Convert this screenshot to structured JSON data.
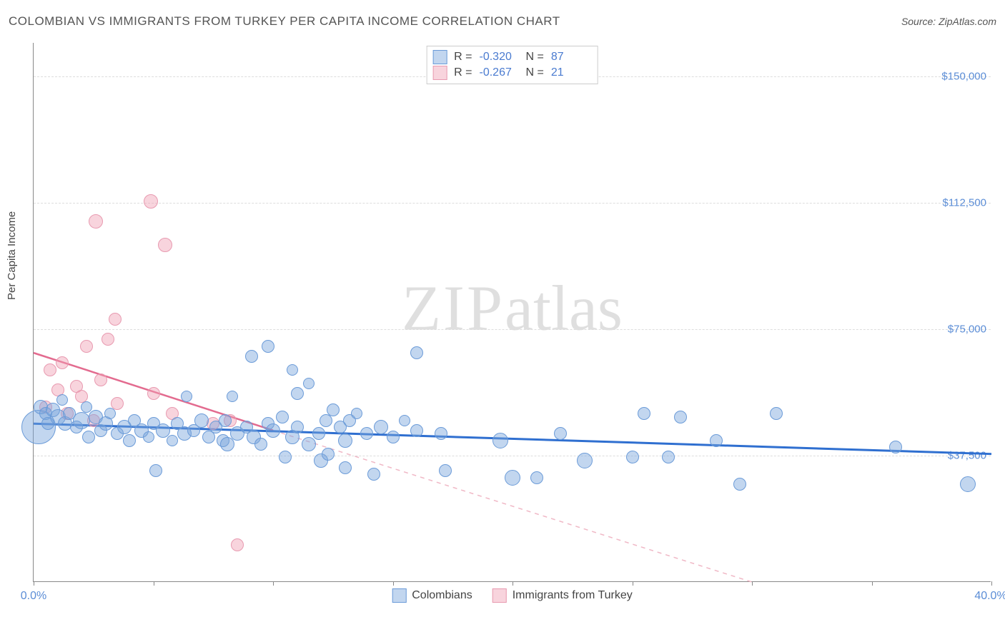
{
  "title": "COLOMBIAN VS IMMIGRANTS FROM TURKEY PER CAPITA INCOME CORRELATION CHART",
  "source_label": "Source: ",
  "source_name": "ZipAtlas.com",
  "ylabel": "Per Capita Income",
  "watermark_a": "ZIP",
  "watermark_b": "atlas",
  "chart": {
    "type": "scatter",
    "xlim": [
      0,
      40
    ],
    "ylim": [
      0,
      160000
    ],
    "x_tick_positions": [
      0,
      5,
      10,
      15,
      20,
      25,
      30,
      35,
      40
    ],
    "x_start_label": "0.0%",
    "x_end_label": "40.0%",
    "y_ticks": [
      {
        "v": 37500,
        "label": "$37,500"
      },
      {
        "v": 75000,
        "label": "$75,000"
      },
      {
        "v": 112500,
        "label": "$112,500"
      },
      {
        "v": 150000,
        "label": "$150,000"
      }
    ],
    "grid_color": "#dddddd",
    "axis_color": "#888888",
    "tick_label_color": "#5b8dd6",
    "series": {
      "colombians": {
        "label": "Colombians",
        "fill": "rgba(120,165,220,0.45)",
        "stroke": "#6b9bd8",
        "trend_color": "#2f6fd0",
        "trend_width": 3,
        "R": "-0.320",
        "N": "87",
        "trend": {
          "x1": 0,
          "y1": 47000,
          "x2": 40,
          "y2": 38000
        },
        "points": [
          {
            "x": 0.2,
            "y": 46000,
            "r": 24
          },
          {
            "x": 0.3,
            "y": 52000,
            "r": 10
          },
          {
            "x": 0.5,
            "y": 50000,
            "r": 9
          },
          {
            "x": 0.6,
            "y": 47000,
            "r": 9
          },
          {
            "x": 0.8,
            "y": 51000,
            "r": 10
          },
          {
            "x": 1.0,
            "y": 49000,
            "r": 11
          },
          {
            "x": 1.2,
            "y": 54000,
            "r": 8
          },
          {
            "x": 1.3,
            "y": 47000,
            "r": 10
          },
          {
            "x": 1.5,
            "y": 50000,
            "r": 9
          },
          {
            "x": 1.8,
            "y": 46000,
            "r": 9
          },
          {
            "x": 2.0,
            "y": 48000,
            "r": 12
          },
          {
            "x": 2.2,
            "y": 52000,
            "r": 8
          },
          {
            "x": 2.3,
            "y": 43000,
            "r": 9
          },
          {
            "x": 2.6,
            "y": 49000,
            "r": 10
          },
          {
            "x": 2.8,
            "y": 45000,
            "r": 9
          },
          {
            "x": 3.0,
            "y": 47000,
            "r": 10
          },
          {
            "x": 3.2,
            "y": 50000,
            "r": 8
          },
          {
            "x": 3.5,
            "y": 44000,
            "r": 9
          },
          {
            "x": 3.8,
            "y": 46000,
            "r": 10
          },
          {
            "x": 4.0,
            "y": 42000,
            "r": 9
          },
          {
            "x": 4.2,
            "y": 48000,
            "r": 9
          },
          {
            "x": 4.5,
            "y": 45000,
            "r": 10
          },
          {
            "x": 4.8,
            "y": 43000,
            "r": 8
          },
          {
            "x": 5.0,
            "y": 47000,
            "r": 9
          },
          {
            "x": 5.1,
            "y": 33000,
            "r": 9
          },
          {
            "x": 5.4,
            "y": 45000,
            "r": 10
          },
          {
            "x": 5.8,
            "y": 42000,
            "r": 8
          },
          {
            "x": 6.0,
            "y": 47000,
            "r": 9
          },
          {
            "x": 6.3,
            "y": 44000,
            "r": 10
          },
          {
            "x": 6.4,
            "y": 55000,
            "r": 8
          },
          {
            "x": 6.7,
            "y": 45000,
            "r": 9
          },
          {
            "x": 7.0,
            "y": 48000,
            "r": 10
          },
          {
            "x": 7.3,
            "y": 43000,
            "r": 9
          },
          {
            "x": 7.6,
            "y": 46000,
            "r": 9
          },
          {
            "x": 7.9,
            "y": 42000,
            "r": 9
          },
          {
            "x": 8.0,
            "y": 48000,
            "r": 9
          },
          {
            "x": 8.1,
            "y": 41000,
            "r": 10
          },
          {
            "x": 8.3,
            "y": 55000,
            "r": 8
          },
          {
            "x": 8.5,
            "y": 44000,
            "r": 10
          },
          {
            "x": 8.9,
            "y": 46000,
            "r": 9
          },
          {
            "x": 9.1,
            "y": 67000,
            "r": 9
          },
          {
            "x": 9.2,
            "y": 43000,
            "r": 10
          },
          {
            "x": 9.5,
            "y": 41000,
            "r": 9
          },
          {
            "x": 9.8,
            "y": 47000,
            "r": 9
          },
          {
            "x": 9.8,
            "y": 70000,
            "r": 9
          },
          {
            "x": 10.0,
            "y": 45000,
            "r": 10
          },
          {
            "x": 10.4,
            "y": 49000,
            "r": 9
          },
          {
            "x": 10.5,
            "y": 37000,
            "r": 9
          },
          {
            "x": 10.8,
            "y": 43000,
            "r": 10
          },
          {
            "x": 10.8,
            "y": 63000,
            "r": 8
          },
          {
            "x": 11.0,
            "y": 46000,
            "r": 9
          },
          {
            "x": 11.0,
            "y": 56000,
            "r": 9
          },
          {
            "x": 11.5,
            "y": 41000,
            "r": 10
          },
          {
            "x": 11.5,
            "y": 59000,
            "r": 8
          },
          {
            "x": 11.9,
            "y": 44000,
            "r": 9
          },
          {
            "x": 12.0,
            "y": 36000,
            "r": 10
          },
          {
            "x": 12.2,
            "y": 48000,
            "r": 9
          },
          {
            "x": 12.3,
            "y": 38000,
            "r": 9
          },
          {
            "x": 12.5,
            "y": 51000,
            "r": 9
          },
          {
            "x": 12.8,
            "y": 46000,
            "r": 9
          },
          {
            "x": 13.0,
            "y": 42000,
            "r": 10
          },
          {
            "x": 13.0,
            "y": 34000,
            "r": 9
          },
          {
            "x": 13.2,
            "y": 48000,
            "r": 9
          },
          {
            "x": 13.5,
            "y": 50000,
            "r": 8
          },
          {
            "x": 13.9,
            "y": 44000,
            "r": 9
          },
          {
            "x": 14.2,
            "y": 32000,
            "r": 9
          },
          {
            "x": 14.5,
            "y": 46000,
            "r": 10
          },
          {
            "x": 15.0,
            "y": 43000,
            "r": 9
          },
          {
            "x": 15.5,
            "y": 48000,
            "r": 8
          },
          {
            "x": 16.0,
            "y": 68000,
            "r": 9
          },
          {
            "x": 16.0,
            "y": 45000,
            "r": 9
          },
          {
            "x": 17.0,
            "y": 44000,
            "r": 9
          },
          {
            "x": 17.2,
            "y": 33000,
            "r": 9
          },
          {
            "x": 19.5,
            "y": 42000,
            "r": 11
          },
          {
            "x": 20.0,
            "y": 31000,
            "r": 11
          },
          {
            "x": 21.0,
            "y": 31000,
            "r": 9
          },
          {
            "x": 22.0,
            "y": 44000,
            "r": 9
          },
          {
            "x": 23.0,
            "y": 36000,
            "r": 11
          },
          {
            "x": 25.0,
            "y": 37000,
            "r": 9
          },
          {
            "x": 25.5,
            "y": 50000,
            "r": 9
          },
          {
            "x": 26.5,
            "y": 37000,
            "r": 9
          },
          {
            "x": 27.0,
            "y": 49000,
            "r": 9
          },
          {
            "x": 28.5,
            "y": 42000,
            "r": 9
          },
          {
            "x": 29.5,
            "y": 29000,
            "r": 9
          },
          {
            "x": 31.0,
            "y": 50000,
            "r": 9
          },
          {
            "x": 36.0,
            "y": 40000,
            "r": 9
          },
          {
            "x": 39.0,
            "y": 29000,
            "r": 11
          }
        ]
      },
      "turkey": {
        "label": "Immigrants from Turkey",
        "fill": "rgba(240,160,180,0.45)",
        "stroke": "#e89ab0",
        "trend_color": "#e36b8f",
        "trend_width": 2.5,
        "trend_dash_color": "#f0b8c6",
        "R": "-0.267",
        "N": "21",
        "trend_solid": {
          "x1": 0,
          "y1": 68000,
          "x2": 10,
          "y2": 45000
        },
        "trend_dash": {
          "x1": 10,
          "y1": 45000,
          "x2": 30,
          "y2": 0
        },
        "points": [
          {
            "x": 0.5,
            "y": 52000,
            "r": 9
          },
          {
            "x": 0.7,
            "y": 63000,
            "r": 9
          },
          {
            "x": 1.0,
            "y": 57000,
            "r": 9
          },
          {
            "x": 1.2,
            "y": 65000,
            "r": 9
          },
          {
            "x": 1.4,
            "y": 50000,
            "r": 9
          },
          {
            "x": 1.8,
            "y": 58000,
            "r": 9
          },
          {
            "x": 2.0,
            "y": 55000,
            "r": 9
          },
          {
            "x": 2.2,
            "y": 70000,
            "r": 9
          },
          {
            "x": 2.5,
            "y": 48000,
            "r": 9
          },
          {
            "x": 2.6,
            "y": 107000,
            "r": 10
          },
          {
            "x": 2.8,
            "y": 60000,
            "r": 9
          },
          {
            "x": 3.1,
            "y": 72000,
            "r": 9
          },
          {
            "x": 3.4,
            "y": 78000,
            "r": 9
          },
          {
            "x": 3.5,
            "y": 53000,
            "r": 9
          },
          {
            "x": 4.9,
            "y": 113000,
            "r": 10
          },
          {
            "x": 5.0,
            "y": 56000,
            "r": 9
          },
          {
            "x": 5.5,
            "y": 100000,
            "r": 10
          },
          {
            "x": 5.8,
            "y": 50000,
            "r": 9
          },
          {
            "x": 7.5,
            "y": 47000,
            "r": 9
          },
          {
            "x": 8.2,
            "y": 48000,
            "r": 9
          },
          {
            "x": 8.5,
            "y": 11000,
            "r": 9
          }
        ]
      }
    },
    "legend_top": {
      "r_label": "R =",
      "n_label": "N ="
    }
  }
}
